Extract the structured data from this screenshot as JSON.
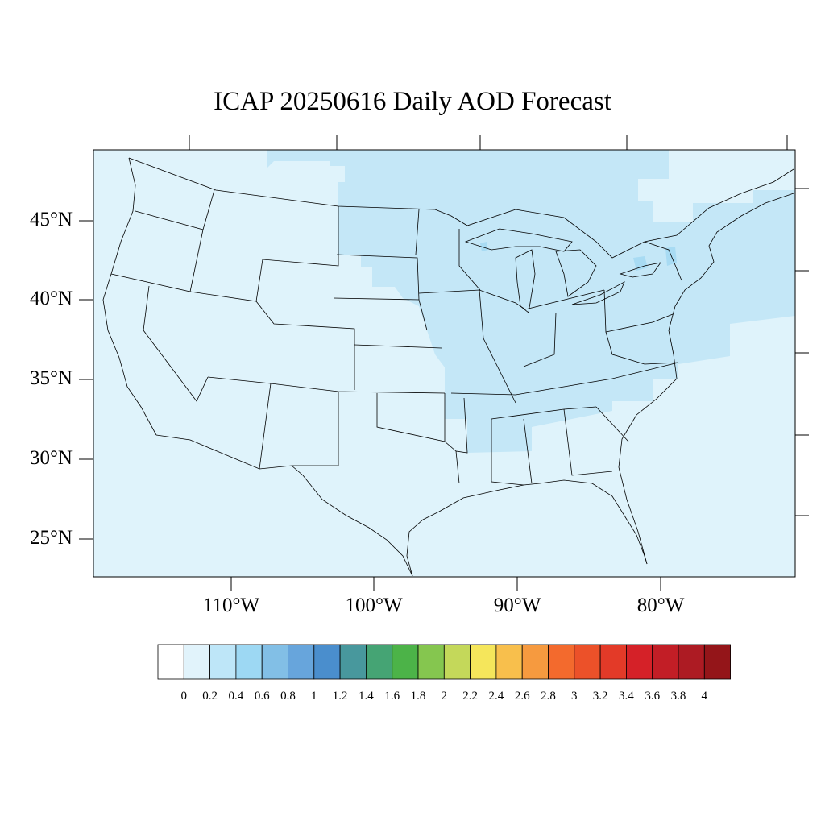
{
  "title": "ICAP 20250616 Daily AOD Forecast",
  "map": {
    "lat_labels": [
      "45°N",
      "40°N",
      "35°N",
      "30°N",
      "25°N"
    ],
    "lon_labels": [
      "110°W",
      "100°W",
      "90°W",
      "80°W"
    ],
    "background_color": "#dff3fb",
    "elevated_color": "#c4e7f7",
    "patch_color": "#a8dbf3",
    "border_color": "#000000"
  },
  "colorbar": {
    "labels": [
      "0",
      "0.2",
      "0.4",
      "0.6",
      "0.8",
      "1",
      "1.2",
      "1.4",
      "1.6",
      "1.8",
      "2",
      "2.2",
      "2.4",
      "2.6",
      "2.8",
      "3",
      "3.2",
      "3.4",
      "3.6",
      "3.8",
      "4"
    ],
    "colors": [
      "#ffffff",
      "#e1f3fb",
      "#bee6f8",
      "#9dd8f3",
      "#82bfe6",
      "#67a5dc",
      "#4a8ecd",
      "#48989d",
      "#45a474",
      "#4cb348",
      "#85c64f",
      "#c4d85a",
      "#f5e65b",
      "#f8bf4c",
      "#f69a3f",
      "#f36a2d",
      "#ec5129",
      "#e33a28",
      "#d52128",
      "#c21e26",
      "#ad1b23",
      "#941519"
    ]
  }
}
